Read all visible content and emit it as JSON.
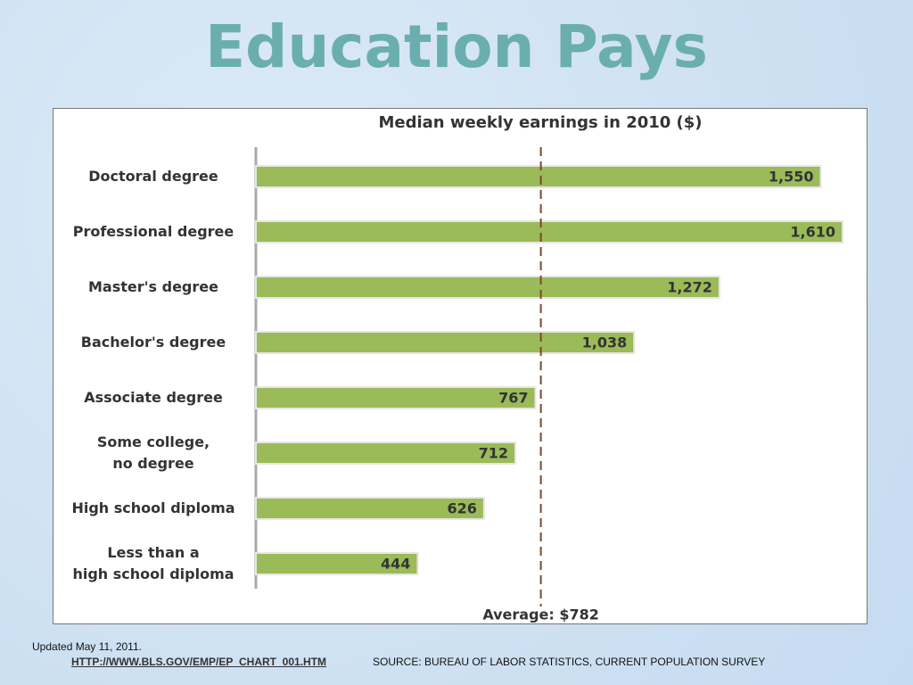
{
  "header": {
    "title": "Education Pays"
  },
  "chart_data": {
    "type": "bar",
    "orientation": "horizontal",
    "title": "Median weekly earnings in 2010 ($)",
    "categories": [
      "Doctoral degree",
      "Professional degree",
      "Master's degree",
      "Bachelor's degree",
      "Associate degree",
      "Some college,\nno degree",
      "High school diploma",
      "Less than a\nhigh school diploma"
    ],
    "values": [
      1550,
      1610,
      1272,
      1038,
      767,
      712,
      626,
      444
    ],
    "value_labels": [
      "1,550",
      "1,610",
      "1,272",
      "1,038",
      "767",
      "712",
      "626",
      "444"
    ],
    "color": "#9bbb59",
    "xlim": [
      0,
      1676
    ],
    "average": {
      "value": 782,
      "label": "Average: $782"
    }
  },
  "footer": {
    "updated": "Updated May 11, 2011.",
    "link": "HTTP://WWW.BLS.GOV/EMP/EP_CHART_001.HTM",
    "source": "SOURCE: BUREAU OF LABOR STATISTICS, CURRENT POPULATION SURVEY"
  }
}
